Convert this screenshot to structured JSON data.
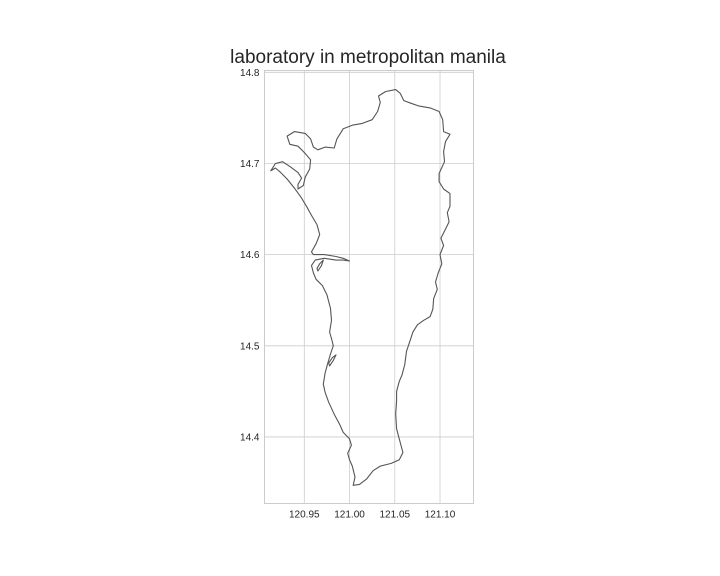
{
  "map": {
    "title": "laboratory in metropolitan manila",
    "x_ticks": [
      "120.95",
      "121.00",
      "121.05",
      "121.10"
    ],
    "y_ticks": [
      "14.8",
      "14.7",
      "14.6",
      "14.5",
      "14.4"
    ],
    "grid": true,
    "colors": {
      "boundary": "#555555",
      "grid": "#cccccc",
      "text": "#262626"
    }
  },
  "chart_data": {
    "type": "map",
    "title": "laboratory in metropolitan manila",
    "x_ticks": [
      120.95,
      121.0,
      121.05,
      121.1
    ],
    "y_ticks": [
      14.4,
      14.5,
      14.6,
      14.7,
      14.8
    ],
    "xlim": [
      120.906,
      121.137
    ],
    "ylim": [
      14.327,
      14.802
    ],
    "grid": true,
    "outline": [
      [
        121.004,
        14.347
      ],
      [
        121.006,
        14.356
      ],
      [
        121.003,
        14.368
      ],
      [
        121.0,
        14.375
      ],
      [
        120.998,
        14.382
      ],
      [
        121.002,
        14.391
      ],
      [
        121.0,
        14.398
      ],
      [
        120.993,
        14.405
      ],
      [
        120.989,
        14.414
      ],
      [
        120.983,
        14.425
      ],
      [
        120.977,
        14.438
      ],
      [
        120.973,
        14.449
      ],
      [
        120.971,
        14.458
      ],
      [
        120.973,
        14.47
      ],
      [
        120.976,
        14.481
      ],
      [
        120.979,
        14.491
      ],
      [
        120.982,
        14.5
      ],
      [
        120.98,
        14.508
      ],
      [
        120.978,
        14.515
      ],
      [
        120.98,
        14.528
      ],
      [
        120.979,
        14.541
      ],
      [
        120.975,
        14.556
      ],
      [
        120.97,
        14.566
      ],
      [
        120.963,
        14.573
      ],
      [
        120.96,
        14.58
      ],
      [
        120.958,
        14.588
      ],
      [
        120.962,
        14.594
      ],
      [
        120.972,
        14.596
      ],
      [
        120.985,
        14.594
      ],
      [
        120.993,
        14.594
      ],
      [
        121.0,
        14.593
      ],
      [
        120.993,
        14.596
      ],
      [
        120.985,
        14.598
      ],
      [
        120.972,
        14.6
      ],
      [
        120.96,
        14.6
      ],
      [
        120.958,
        14.603
      ],
      [
        120.963,
        14.612
      ],
      [
        120.967,
        14.622
      ],
      [
        120.964,
        14.633
      ],
      [
        120.958,
        14.643
      ],
      [
        120.953,
        14.652
      ],
      [
        120.947,
        14.662
      ],
      [
        120.939,
        14.673
      ],
      [
        120.931,
        14.683
      ],
      [
        120.924,
        14.69
      ],
      [
        120.918,
        14.695
      ],
      [
        120.913,
        14.692
      ],
      [
        120.918,
        14.7
      ],
      [
        120.926,
        14.702
      ],
      [
        120.935,
        14.696
      ],
      [
        120.943,
        14.69
      ],
      [
        120.947,
        14.684
      ],
      [
        120.943,
        14.677
      ],
      [
        120.943,
        14.672
      ],
      [
        120.949,
        14.676
      ],
      [
        120.951,
        14.685
      ],
      [
        120.956,
        14.694
      ],
      [
        120.957,
        14.704
      ],
      [
        120.95,
        14.712
      ],
      [
        120.943,
        14.719
      ],
      [
        120.934,
        14.721
      ],
      [
        120.931,
        14.73
      ],
      [
        120.939,
        14.735
      ],
      [
        120.951,
        14.733
      ],
      [
        120.957,
        14.727
      ],
      [
        120.96,
        14.718
      ],
      [
        120.965,
        14.715
      ],
      [
        120.973,
        14.718
      ],
      [
        120.983,
        14.717
      ],
      [
        120.986,
        14.727
      ],
      [
        120.993,
        14.738
      ],
      [
        121.003,
        14.742
      ],
      [
        121.014,
        14.744
      ],
      [
        121.025,
        14.748
      ],
      [
        121.031,
        14.757
      ],
      [
        121.034,
        14.767
      ],
      [
        121.032,
        14.774
      ],
      [
        121.04,
        14.779
      ],
      [
        121.051,
        14.781
      ],
      [
        121.056,
        14.777
      ],
      [
        121.06,
        14.769
      ],
      [
        121.068,
        14.766
      ],
      [
        121.077,
        14.763
      ],
      [
        121.089,
        14.761
      ],
      [
        121.099,
        14.757
      ],
      [
        121.103,
        14.748
      ],
      [
        121.104,
        14.735
      ],
      [
        121.111,
        14.732
      ],
      [
        121.106,
        14.724
      ],
      [
        121.104,
        14.713
      ],
      [
        121.105,
        14.702
      ],
      [
        121.099,
        14.689
      ],
      [
        121.099,
        14.68
      ],
      [
        121.104,
        14.672
      ],
      [
        121.111,
        14.667
      ],
      [
        121.111,
        14.653
      ],
      [
        121.108,
        14.646
      ],
      [
        121.11,
        14.636
      ],
      [
        121.106,
        14.628
      ],
      [
        121.101,
        14.618
      ],
      [
        121.104,
        14.61
      ],
      [
        121.1,
        14.6
      ],
      [
        121.102,
        14.59
      ],
      [
        121.098,
        14.58
      ],
      [
        121.095,
        14.57
      ],
      [
        121.097,
        14.562
      ],
      [
        121.093,
        14.552
      ],
      [
        121.092,
        14.54
      ],
      [
        121.089,
        14.532
      ],
      [
        121.082,
        14.528
      ],
      [
        121.075,
        14.523
      ],
      [
        121.07,
        14.515
      ],
      [
        121.067,
        14.506
      ],
      [
        121.063,
        14.494
      ],
      [
        121.061,
        14.479
      ],
      [
        121.058,
        14.468
      ],
      [
        121.055,
        14.461
      ],
      [
        121.052,
        14.45
      ],
      [
        121.052,
        14.44
      ],
      [
        121.051,
        14.425
      ],
      [
        121.052,
        14.409
      ],
      [
        121.056,
        14.394
      ],
      [
        121.059,
        14.383
      ],
      [
        121.055,
        14.375
      ],
      [
        121.046,
        14.371
      ],
      [
        121.034,
        14.368
      ],
      [
        121.026,
        14.363
      ],
      [
        121.019,
        14.354
      ],
      [
        121.011,
        14.348
      ],
      [
        121.004,
        14.347
      ]
    ],
    "islets": [
      [
        [
          120.978,
          14.478
        ],
        [
          120.982,
          14.484
        ],
        [
          120.985,
          14.49
        ],
        [
          120.981,
          14.487
        ],
        [
          120.977,
          14.481
        ],
        [
          120.978,
          14.478
        ]
      ],
      [
        [
          120.965,
          14.582
        ],
        [
          120.969,
          14.588
        ],
        [
          120.971,
          14.594
        ],
        [
          120.967,
          14.59
        ],
        [
          120.964,
          14.585
        ],
        [
          120.965,
          14.582
        ]
      ]
    ]
  }
}
